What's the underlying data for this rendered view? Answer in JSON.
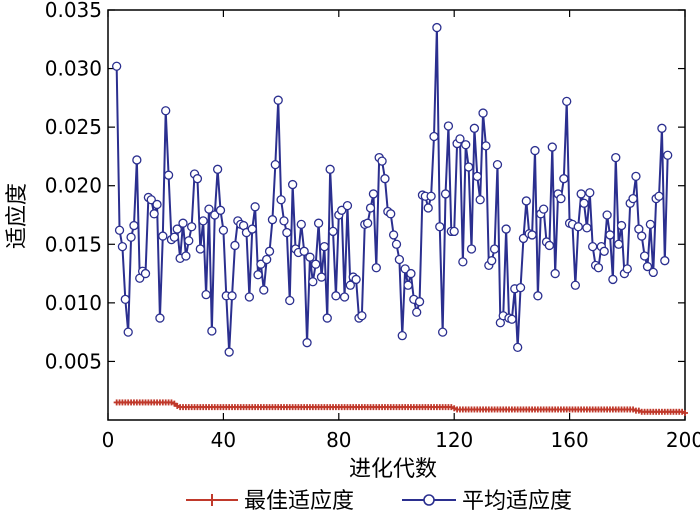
{
  "chart_data": {
    "type": "line",
    "xlabel": "进化代数",
    "ylabel": "适应度",
    "xlim": [
      0,
      200
    ],
    "ylim": [
      0,
      0.035
    ],
    "xticks": [
      0,
      40,
      80,
      120,
      160,
      200
    ],
    "yticks": [
      "0.005",
      "0.010",
      "0.015",
      "0.020",
      "0.025",
      "0.030",
      "0.035"
    ],
    "xtick_labels": [
      "0",
      "40",
      "80",
      "120",
      "160",
      "200"
    ],
    "legend_position": "bottom",
    "grid": false,
    "series": [
      {
        "name": "最佳适应度",
        "color": "#c0392b",
        "marker": "plus",
        "x_start": 3,
        "x_step": 1,
        "values": [
          0.0015,
          0.0015,
          0.0015,
          0.0015,
          0.0015,
          0.0015,
          0.0015,
          0.0015,
          0.0015,
          0.0015,
          0.0015,
          0.0015,
          0.0015,
          0.0015,
          0.0015,
          0.0015,
          0.0015,
          0.0015,
          0.0015,
          0.0015,
          0.0014,
          0.0012,
          0.0011,
          0.0011,
          0.0011,
          0.0011,
          0.0011,
          0.0011,
          0.0011,
          0.0011,
          0.0011,
          0.0011,
          0.0011,
          0.0011,
          0.0011,
          0.0011,
          0.0011,
          0.0011,
          0.0011,
          0.0011,
          0.0011,
          0.0011,
          0.0011,
          0.0011,
          0.0011,
          0.0011,
          0.0011,
          0.0011,
          0.0011,
          0.0011,
          0.0011,
          0.0011,
          0.0011,
          0.0011,
          0.0011,
          0.0011,
          0.0011,
          0.0011,
          0.0011,
          0.0011,
          0.0011,
          0.0011,
          0.0011,
          0.0011,
          0.0011,
          0.0011,
          0.0011,
          0.0011,
          0.0011,
          0.0011,
          0.0011,
          0.0011,
          0.0011,
          0.0011,
          0.0011,
          0.0011,
          0.0011,
          0.0011,
          0.0011,
          0.0011,
          0.0011,
          0.0011,
          0.0011,
          0.0011,
          0.0011,
          0.0011,
          0.0011,
          0.0011,
          0.0011,
          0.0011,
          0.0011,
          0.0011,
          0.0011,
          0.0011,
          0.0011,
          0.0011,
          0.0011,
          0.0011,
          0.0011,
          0.0011,
          0.0011,
          0.0011,
          0.0011,
          0.0011,
          0.0011,
          0.0011,
          0.0011,
          0.0011,
          0.0011,
          0.0011,
          0.0011,
          0.0011,
          0.0011,
          0.0011,
          0.0011,
          0.0011,
          0.0011,
          0.001,
          0.0009,
          0.0009,
          0.0009,
          0.0009,
          0.0009,
          0.0009,
          0.0009,
          0.0009,
          0.0009,
          0.0009,
          0.0009,
          0.0009,
          0.0009,
          0.0009,
          0.0009,
          0.0009,
          0.0009,
          0.0009,
          0.0009,
          0.0009,
          0.0009,
          0.0009,
          0.0009,
          0.0009,
          0.0009,
          0.0009,
          0.0009,
          0.0009,
          0.0009,
          0.0009,
          0.0009,
          0.0009,
          0.0009,
          0.0009,
          0.0009,
          0.0009,
          0.0009,
          0.0009,
          0.0009,
          0.0009,
          0.0009,
          0.0009,
          0.0009,
          0.0009,
          0.0009,
          0.0009,
          0.0009,
          0.0009,
          0.0009,
          0.0009,
          0.0009,
          0.0009,
          0.0009,
          0.0009,
          0.0009,
          0.0009,
          0.0009,
          0.0009,
          0.0009,
          0.0009,
          0.0009,
          0.0009,
          0.0008,
          0.0008,
          0.0007,
          0.0007,
          0.0007,
          0.0007,
          0.0007,
          0.0007,
          0.0007,
          0.0007,
          0.0007,
          0.0007,
          0.0007,
          0.0007,
          0.0007,
          0.0007,
          0.0007,
          0.0006
        ]
      },
      {
        "name": "平均适应度",
        "color": "#2b2f8f",
        "marker": "circle",
        "x_start": 3,
        "x_step": 1,
        "values": [
          0.0302,
          0.0162,
          0.0148,
          0.0103,
          0.0075,
          0.0156,
          0.0166,
          0.0222,
          0.0121,
          0.0127,
          0.0125,
          0.019,
          0.0188,
          0.0176,
          0.0184,
          0.0087,
          0.0157,
          0.0264,
          0.0209,
          0.0154,
          0.0156,
          0.0163,
          0.0138,
          0.0168,
          0.014,
          0.0153,
          0.0165,
          0.021,
          0.0206,
          0.0146,
          0.017,
          0.0107,
          0.018,
          0.0076,
          0.0175,
          0.0214,
          0.0179,
          0.0162,
          0.0106,
          0.0058,
          0.0106,
          0.0149,
          0.017,
          0.0167,
          0.0166,
          0.016,
          0.0105,
          0.0163,
          0.0182,
          0.0124,
          0.0133,
          0.0111,
          0.0137,
          0.0144,
          0.0171,
          0.0218,
          0.0273,
          0.0188,
          0.017,
          0.016,
          0.0102,
          0.0201,
          0.0146,
          0.0143,
          0.0167,
          0.0144,
          0.0066,
          0.0139,
          0.0118,
          0.0133,
          0.0168,
          0.0122,
          0.0148,
          0.0087,
          0.0214,
          0.0161,
          0.0106,
          0.0175,
          0.0179,
          0.0105,
          0.0183,
          0.0115,
          0.0122,
          0.012,
          0.0087,
          0.0089,
          0.0167,
          0.0168,
          0.0181,
          0.0193,
          0.013,
          0.0224,
          0.0221,
          0.0206,
          0.0178,
          0.0176,
          0.0158,
          0.015,
          0.0137,
          0.0072,
          0.0129,
          0.0115,
          0.0125,
          0.0103,
          0.0092,
          0.0101,
          0.0192,
          0.0191,
          0.0181,
          0.0191,
          0.0242,
          0.0335,
          0.0165,
          0.0075,
          0.0193,
          0.0251,
          0.0161,
          0.0161,
          0.0236,
          0.024,
          0.0135,
          0.0235,
          0.0216,
          0.0146,
          0.0249,
          0.0208,
          0.0188,
          0.0262,
          0.0234,
          0.0132,
          0.0136,
          0.0146,
          0.0218,
          0.0083,
          0.0089,
          0.0163,
          0.0087,
          0.0086,
          0.0112,
          0.0062,
          0.0113,
          0.0155,
          0.0187,
          0.0159,
          0.0158,
          0.023,
          0.0106,
          0.0176,
          0.018,
          0.0152,
          0.0149,
          0.0233,
          0.0125,
          0.0193,
          0.0189,
          0.0206,
          0.0272,
          0.0168,
          0.0167,
          0.0115,
          0.0165,
          0.0193,
          0.0185,
          0.0164,
          0.0194,
          0.0148,
          0.0132,
          0.013,
          0.0148,
          0.0144,
          0.0175,
          0.0158,
          0.012,
          0.0224,
          0.015,
          0.0166,
          0.0125,
          0.0129,
          0.0185,
          0.0189,
          0.0208,
          0.0163,
          0.0157,
          0.014,
          0.0131,
          0.0167,
          0.0126,
          0.0189,
          0.0191,
          0.0249,
          0.0136,
          0.0226
        ]
      }
    ]
  }
}
